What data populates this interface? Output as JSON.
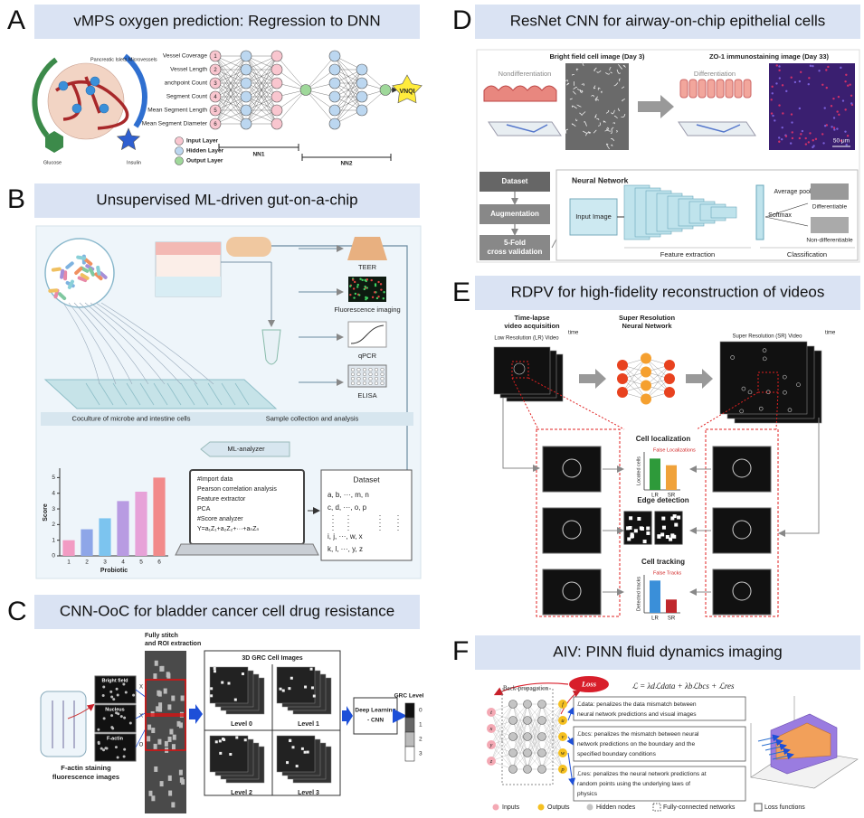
{
  "panel_a": {
    "letter": "A",
    "title": "vMPS oxygen prediction: Regression to DNN",
    "illustration_labels": [
      "Pancreatic Islets Microvessels",
      "Glucose",
      "Insulin"
    ],
    "inputs": [
      "Vessel Coverage",
      "Vessel Length",
      "anchpoint Count",
      "Segment Count",
      "Mean Segment Length",
      "Mean Segment Diameter"
    ],
    "node_numbers": [
      1,
      2,
      3,
      4,
      5,
      6
    ],
    "legend": [
      "Input Layer",
      "Hidden Layer",
      "Output Layer"
    ],
    "networks": [
      "NN1",
      "NN2"
    ],
    "output": "VNQI"
  },
  "panel_b": {
    "letter": "B",
    "title": "Unsupervised ML-driven gut-on-a-chip",
    "assays": [
      "TEER",
      "Fluorescence imaging",
      "qPCR",
      "ELISA"
    ],
    "steps": [
      "Coculture of microbe and intestine cells",
      "Sample collection and analysis",
      "ML-analyzer"
    ],
    "code": [
      "#Import data",
      "Pearson correlation analysis",
      "Feature extractor",
      "PCA",
      "#Score analyzer",
      "Y=a₁Z₁+a₂Z₂+···+aₙZₙ"
    ],
    "dataset_title": "Dataset",
    "dataset_rows": [
      "a, b, ···, m, n",
      "c, d, ···, o, p",
      "i, j, ···, w, x",
      "k, l, ···, y, z"
    ],
    "chart": {
      "type": "bar",
      "ylabel": "Score",
      "xlabel": "Probiotic",
      "categories": [
        "1",
        "2",
        "3",
        "4",
        "5",
        "6"
      ],
      "values": [
        1.0,
        1.7,
        2.4,
        3.5,
        4.1,
        5.0
      ],
      "colors": [
        "#f29bc3",
        "#8ea6e8",
        "#7cc4ef",
        "#b89be2",
        "#e7a2d8",
        "#f28a8a"
      ],
      "ylim": [
        0,
        5.6
      ],
      "yticks": [
        0,
        1,
        2,
        3,
        4,
        5
      ]
    }
  },
  "panel_c": {
    "letter": "C",
    "title": "CNN-OoC for bladder cancer cell drug resistance",
    "channels": [
      "Bright field",
      "Nucleus",
      "F-actin"
    ],
    "marks": [
      "X",
      "X",
      "O"
    ],
    "channel_caption": [
      "F-actin staining",
      "fluorescence images"
    ],
    "stitch_label": [
      "Fully stitch",
      "and ROI extraction"
    ],
    "grc_title": "3D GRC Cell Images",
    "levels": [
      "Level 0",
      "Level 1",
      "Level 2",
      "Level 3"
    ],
    "classifier": [
      "Deep Learning",
      "- CNN"
    ],
    "grc_scale_title": "GRC Level",
    "grc_scale": [
      0,
      1,
      2,
      3
    ]
  },
  "panel_d": {
    "letter": "D",
    "title": "ResNet CNN for airway-on-chip epithelial cells",
    "image_titles": [
      "Bright field cell image (Day 3)",
      "ZO-1 immunostaining image (Day 33)"
    ],
    "states": [
      "Nondifferentiation",
      "Differentiation"
    ],
    "scale_bar": "50 μm",
    "pipeline": [
      [
        "Dataset"
      ],
      [
        "Augmentation"
      ],
      [
        "5-Fold",
        "cross validation"
      ]
    ],
    "network_title": "Neural Network",
    "input": "Input Image",
    "stages": [
      "Feature extraction",
      "Classification"
    ],
    "layers": [
      "Average pool",
      "Softmax"
    ],
    "classes": [
      "Differentiable",
      "Non-differentiable"
    ]
  },
  "panel_e": {
    "letter": "E",
    "title": "RDPV for high-fidelity reconstruction of videos",
    "acquisition": [
      "Time-lapse",
      "video acquisition"
    ],
    "lr_video": "Low Resolution (LR) Video",
    "time": "time",
    "network": [
      "Super Resolution",
      "Neural Network"
    ],
    "sr_video": "Super Resolution (SR) Video",
    "tasks": [
      {
        "name": "Cell localization",
        "note": "False Localizations",
        "ylabel": "Located cells",
        "categories": [
          "LR",
          "SR"
        ],
        "values": [
          3.3,
          2.6
        ],
        "colors": [
          "#2e9a3a",
          "#f0a23a"
        ],
        "ylim": [
          0,
          4
        ]
      },
      {
        "name": "Edge detection"
      },
      {
        "name": "Cell tracking",
        "note": "False Tracks",
        "ylabel": "Detected tracks",
        "categories": [
          "LR",
          "SR"
        ],
        "values": [
          3.4,
          1.4
        ],
        "colors": [
          "#3a8fd9",
          "#c0282d"
        ],
        "ylim": [
          0,
          4
        ]
      }
    ]
  },
  "panel_f": {
    "letter": "F",
    "title": "AIV: PINN fluid dynamics imaging",
    "loss": "Loss",
    "backprop": "Back-propagation",
    "equation": "ℒ = λdℒdata + λbℒbcs + ℒres",
    "inputs": [
      "t",
      "x",
      "y",
      "z"
    ],
    "outputs": [
      "f",
      "u",
      "v",
      "w",
      "p"
    ],
    "terms": [
      [
        "ℒdata: penalizes the data mismatch between",
        "neural network predictions and visual images"
      ],
      [
        "ℒbcs: penalizes the mismatch between neural",
        "network predictions on the boundary and the",
        "specified boundary conditions"
      ],
      [
        "ℒres: penalizes the neural network predictions at",
        "random points using the underlying laws of",
        "physics"
      ]
    ],
    "legend": [
      "Inputs",
      "Outputs",
      "Hidden nodes",
      "Fully-connected networks",
      "Loss functions"
    ]
  }
}
